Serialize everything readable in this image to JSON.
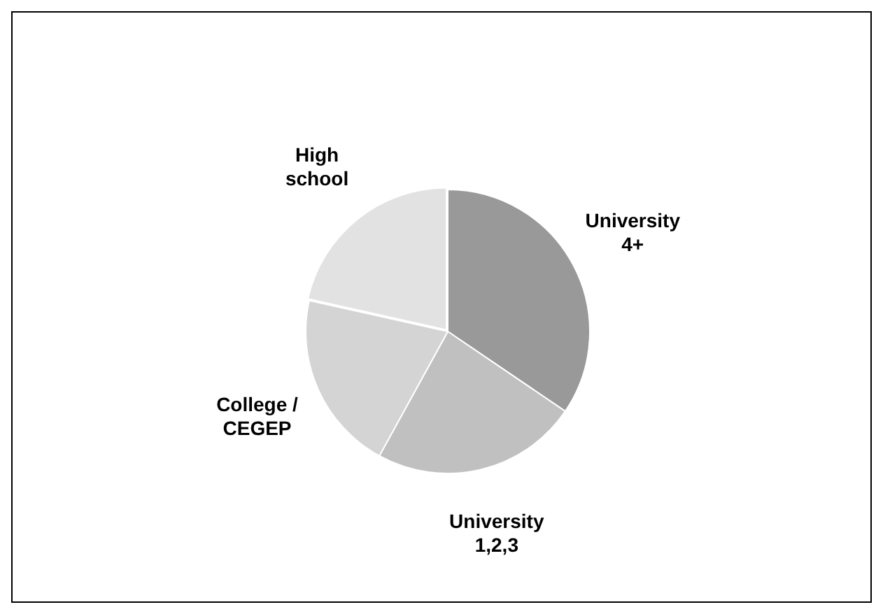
{
  "chart_data": {
    "type": "pie",
    "categories": [
      "University 4+",
      "University 1,2,3",
      "College / CEGEP",
      "High school"
    ],
    "values": [
      34.5,
      23.5,
      20.5,
      21.5
    ],
    "colors": [
      "#999999",
      "#c0c0c0",
      "#d4d4d4",
      "#e2e2e2"
    ],
    "legend": false
  }
}
